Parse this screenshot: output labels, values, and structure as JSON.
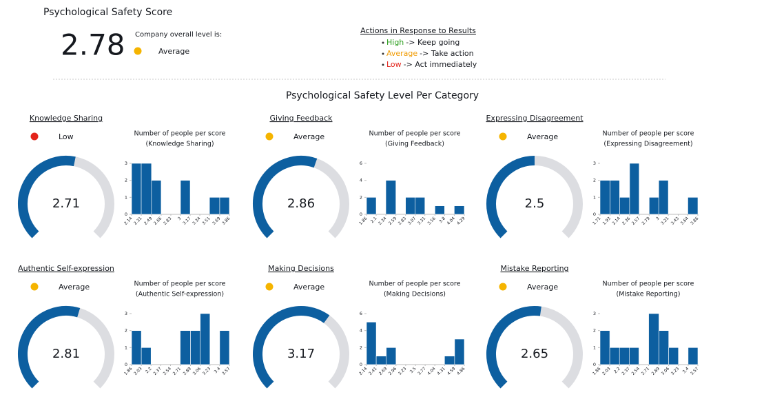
{
  "header": {
    "title": "Psychological Safety Score",
    "score": 2.78,
    "overall_label": "Company overall level is:",
    "level": "Average",
    "level_color": "#f5b400"
  },
  "actions": {
    "title": "Actions in Response to Results",
    "items": [
      {
        "level": "High",
        "color": "#2a9d1c",
        "text": "-> Keep going"
      },
      {
        "level": "Average",
        "color": "#f09a00",
        "text": "-> Take action"
      },
      {
        "level": "Low",
        "color": "#e3241b",
        "text": "-> Act immediately"
      }
    ]
  },
  "section_title": "Psychological Safety Level Per Category",
  "chart_data": [
    {
      "type": "gauge",
      "title": "Knowledge Sharing",
      "status": "Low",
      "status_color": "#e3241b",
      "value": 2.71,
      "ylim": [
        0,
        5
      ],
      "color": "#0d5fa0",
      "track_color": "#dcdde1"
    },
    {
      "type": "histogram",
      "title": "Number of people per score",
      "subtitle": "(Knowledge Sharing)",
      "bins": [
        2.14,
        2.31,
        2.49,
        2.66,
        2.83,
        3,
        3.17,
        3.34,
        3.51,
        3.69,
        3.86
      ],
      "values": [
        3,
        3,
        2,
        0,
        0,
        2,
        0,
        0,
        1,
        1
      ],
      "ylim": [
        0,
        3
      ],
      "yticks": [
        0,
        1,
        2,
        3
      ],
      "color": "#0d5fa0"
    },
    {
      "type": "gauge",
      "title": "Giving Feedback",
      "status": "Average",
      "status_color": "#f5b400",
      "value": 2.86,
      "ylim": [
        0,
        5
      ],
      "color": "#0d5fa0",
      "track_color": "#dcdde1"
    },
    {
      "type": "histogram",
      "title": "Number of people per score",
      "subtitle": "(Giving Feedback)",
      "bins": [
        1.86,
        2.1,
        2.34,
        2.59,
        2.83,
        3.07,
        3.31,
        3.56,
        3.8,
        4.04,
        4.29
      ],
      "values": [
        2,
        0,
        4,
        0,
        2,
        2,
        0,
        1,
        0,
        1
      ],
      "ylim": [
        0,
        6
      ],
      "yticks": [
        0,
        2,
        4,
        6
      ],
      "color": "#0d5fa0"
    },
    {
      "type": "gauge",
      "title": "Expressing Disagreement",
      "status": "Average",
      "status_color": "#f5b400",
      "value": 2.5,
      "ylim": [
        0,
        5
      ],
      "color": "#0d5fa0",
      "track_color": "#dcdde1"
    },
    {
      "type": "histogram",
      "title": "Number of people per score",
      "subtitle": "(Expressing Disagreement)",
      "bins": [
        1.71,
        1.93,
        2.14,
        2.36,
        2.57,
        2.79,
        3,
        3.21,
        3.43,
        3.64,
        3.86
      ],
      "values": [
        2,
        2,
        1,
        3,
        0,
        1,
        2,
        0,
        0,
        1
      ],
      "ylim": [
        0,
        3
      ],
      "yticks": [
        0,
        1,
        2,
        3
      ],
      "color": "#0d5fa0"
    },
    {
      "type": "gauge",
      "title": "Authentic Self-expression",
      "status": "Average",
      "status_color": "#f5b400",
      "value": 2.81,
      "ylim": [
        0,
        5
      ],
      "color": "#0d5fa0",
      "track_color": "#dcdde1"
    },
    {
      "type": "histogram",
      "title": "Number of people per score",
      "subtitle": "(Authentic Self-expression)",
      "bins": [
        1.86,
        2.03,
        2.2,
        2.37,
        2.54,
        2.71,
        2.89,
        3.06,
        3.23,
        3.4,
        3.57
      ],
      "values": [
        2,
        1,
        0,
        0,
        0,
        2,
        2,
        3,
        0,
        2
      ],
      "ylim": [
        0,
        3
      ],
      "yticks": [
        0,
        1,
        2,
        3
      ],
      "color": "#0d5fa0"
    },
    {
      "type": "gauge",
      "title": "Making Decisions",
      "status": "Average",
      "status_color": "#f5b400",
      "value": 3.17,
      "ylim": [
        0,
        5
      ],
      "color": "#0d5fa0",
      "track_color": "#dcdde1"
    },
    {
      "type": "histogram",
      "title": "Number of people per score",
      "subtitle": "(Making Decisions)",
      "bins": [
        2.14,
        2.41,
        2.69,
        2.96,
        3.23,
        3.5,
        3.77,
        4.04,
        4.31,
        4.59,
        4.86
      ],
      "values": [
        5,
        1,
        2,
        0,
        0,
        0,
        0,
        0,
        1,
        3
      ],
      "ylim": [
        0,
        6
      ],
      "yticks": [
        0,
        2,
        4,
        6
      ],
      "color": "#0d5fa0"
    },
    {
      "type": "gauge",
      "title": "Mistake Reporting",
      "status": "Average",
      "status_color": "#f5b400",
      "value": 2.65,
      "ylim": [
        0,
        5
      ],
      "color": "#0d5fa0",
      "track_color": "#dcdde1"
    },
    {
      "type": "histogram",
      "title": "Number of people per score",
      "subtitle": "(Mistake Reporting)",
      "bins": [
        1.86,
        2.03,
        2.2,
        2.37,
        2.54,
        2.71,
        2.89,
        3.06,
        3.23,
        3.4,
        3.57
      ],
      "values": [
        2,
        1,
        1,
        1,
        0,
        3,
        2,
        1,
        0,
        1
      ],
      "ylim": [
        0,
        3
      ],
      "yticks": [
        0,
        1,
        2,
        3
      ],
      "color": "#0d5fa0"
    }
  ]
}
